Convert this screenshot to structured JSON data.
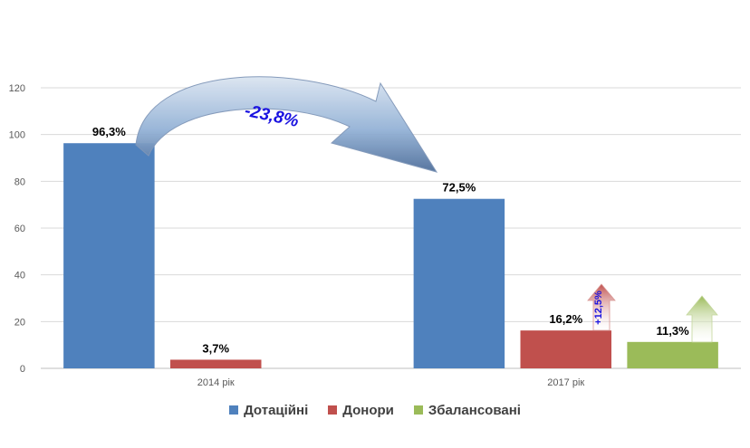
{
  "chart_data": {
    "type": "bar",
    "categories": [
      "2014 рік",
      "2017 рік"
    ],
    "series": [
      {
        "name": "Дотаційні",
        "values": [
          96.3,
          72.5
        ],
        "labels": [
          "96,3%",
          "72,5%"
        ],
        "color": "#4f81bd"
      },
      {
        "name": "Донори",
        "values": [
          3.7,
          16.2
        ],
        "labels": [
          "3,7%",
          "16,2%"
        ],
        "color": "#c0504d"
      },
      {
        "name": "Збалансовані",
        "values": [
          null,
          11.3
        ],
        "labels": [
          null,
          "11,3%"
        ],
        "color": "#9bbb59"
      }
    ],
    "yticks": [
      "0",
      "20",
      "40",
      "60",
      "80",
      "100",
      "120"
    ],
    "ylim": [
      0,
      120
    ],
    "grid": true,
    "legend_position": "bottom",
    "annotations": {
      "curved_arrow_label": "-23,8%",
      "up_arrow_label": "+12,5%"
    }
  }
}
